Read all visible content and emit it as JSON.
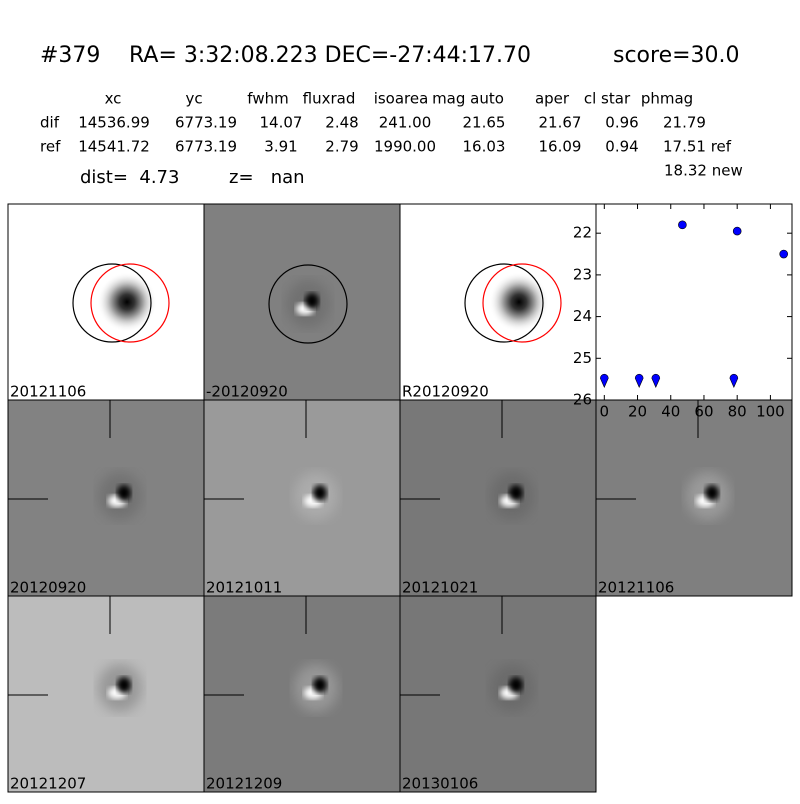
{
  "header": {
    "id": "#379",
    "coords": "RA= 3:32:08.223 DEC=-27:44:17.70",
    "score": "score=30.0"
  },
  "table": {
    "columns": [
      "xc",
      "yc",
      "fwhm",
      "fluxrad",
      "isoarea",
      "mag auto",
      "aper",
      "cl star",
      "phmag"
    ],
    "rows": [
      [
        "dif",
        "14536.99",
        "6773.19",
        "14.07",
        "2.48",
        "241.00",
        "21.65",
        "21.67",
        "0.96",
        "21.79"
      ],
      [
        "ref",
        "14541.72",
        "6773.19",
        "3.91",
        "2.79",
        "1990.00",
        "16.03",
        "16.09",
        "0.94",
        "17.51 ref"
      ]
    ],
    "extra": "18.32 new"
  },
  "info": {
    "dist": "dist=  4.73",
    "z": "z=   nan"
  },
  "panels": [
    {
      "label": "20121106"
    },
    {
      "label": "-20120920"
    },
    {
      "label": "R20120920"
    },
    {
      "label": "20120920"
    },
    {
      "label": "20121011"
    },
    {
      "label": "20121021"
    },
    {
      "label": "20121106",
      "label_color": "#ff0000"
    },
    {
      "label": "20121207"
    },
    {
      "label": "20121209"
    },
    {
      "label": "20130106"
    }
  ],
  "chart_data": {
    "type": "scatter",
    "xlim": [
      -5,
      113
    ],
    "ylim": [
      26,
      21.3
    ],
    "xticks": [
      0,
      20,
      40,
      60,
      80,
      100
    ],
    "yticks": [
      22,
      23,
      24,
      25,
      26
    ],
    "series": [
      {
        "marker": "circle",
        "color": "#0000ff",
        "x": [
          47,
          80,
          108
        ],
        "values": [
          21.8,
          21.95,
          22.5
        ]
      },
      {
        "marker": "triangle-down",
        "color": "#0000ff",
        "x": [
          0,
          21,
          31,
          78
        ],
        "values": [
          25.55,
          25.55,
          25.55,
          25.55
        ]
      }
    ]
  }
}
